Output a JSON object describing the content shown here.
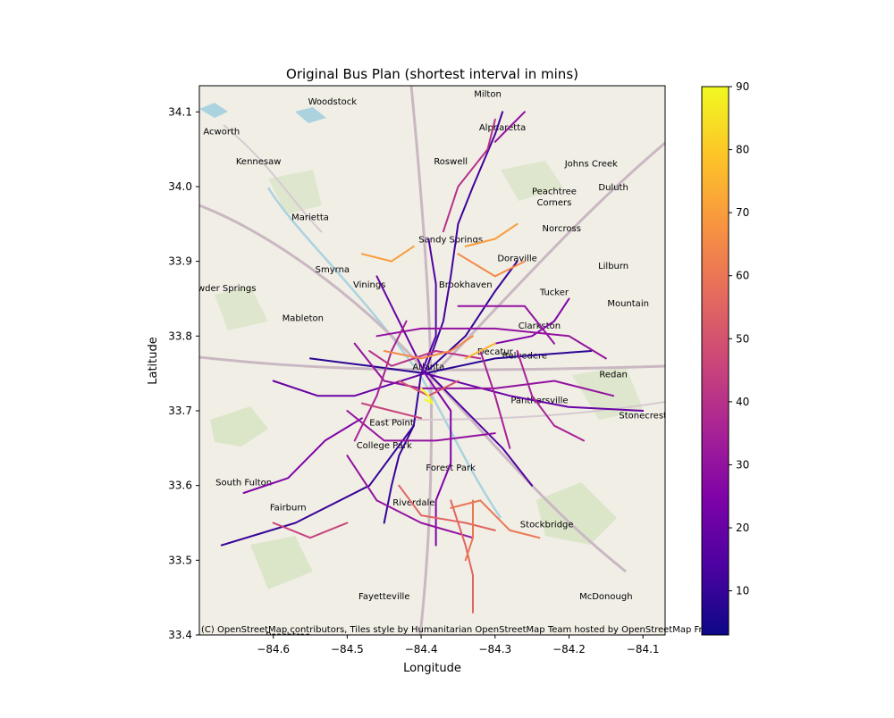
{
  "figure": {
    "title": "Original Bus Plan (shortest interval in mins)",
    "xlabel": "Longitude",
    "ylabel": "Latitude",
    "attribution": "(C) OpenStreetMap contributors, Tiles style by Humanitarian OpenStreetMap Team hosted by OpenStreetMap France"
  },
  "chart_data": {
    "type": "map",
    "title": "Original Bus Plan (shortest interval in mins)",
    "xlabel": "Longitude",
    "ylabel": "Latitude",
    "xlim": [
      -84.7,
      -84.07
    ],
    "ylim": [
      33.4,
      34.135
    ],
    "xticks": [
      -84.6,
      -84.5,
      -84.4,
      -84.3,
      -84.2,
      -84.1
    ],
    "yticks": [
      33.4,
      33.5,
      33.6,
      33.7,
      33.8,
      33.9,
      34.0,
      34.1
    ],
    "colorbar": {
      "colormap": "plasma",
      "min": 3,
      "max": 90,
      "ticks": [
        10,
        20,
        30,
        40,
        50,
        60,
        70,
        80,
        90
      ]
    },
    "basemap_places": [
      {
        "name": "Milton",
        "lon": -84.31,
        "lat": 34.12
      },
      {
        "name": "Woodstock",
        "lon": -84.52,
        "lat": 34.11
      },
      {
        "name": "Acworth",
        "lon": -84.67,
        "lat": 34.07
      },
      {
        "name": "Alpharetta",
        "lon": -84.29,
        "lat": 34.075
      },
      {
        "name": "Kennesaw",
        "lon": -84.62,
        "lat": 34.03
      },
      {
        "name": "Roswell",
        "lon": -84.36,
        "lat": 34.03
      },
      {
        "name": "Johns Creek",
        "lon": -84.17,
        "lat": 34.027
      },
      {
        "name": "Peachtree",
        "lon": -84.22,
        "lat": 33.99
      },
      {
        "name": "Corners",
        "lon": -84.22,
        "lat": 33.975
      },
      {
        "name": "Duluth",
        "lon": -84.14,
        "lat": 33.995
      },
      {
        "name": "Marietta",
        "lon": -84.55,
        "lat": 33.955
      },
      {
        "name": "Norcross",
        "lon": -84.21,
        "lat": 33.94
      },
      {
        "name": "Sandy Springs",
        "lon": -84.36,
        "lat": 33.925
      },
      {
        "name": "Smyrna",
        "lon": -84.52,
        "lat": 33.885
      },
      {
        "name": "Lilburn",
        "lon": -84.14,
        "lat": 33.89
      },
      {
        "name": "Doraville",
        "lon": -84.27,
        "lat": 33.9
      },
      {
        "name": "Powder Springs",
        "lon": -84.67,
        "lat": 33.86
      },
      {
        "name": "Vinings",
        "lon": -84.47,
        "lat": 33.865
      },
      {
        "name": "Brookhaven",
        "lon": -84.34,
        "lat": 33.865
      },
      {
        "name": "Tucker",
        "lon": -84.22,
        "lat": 33.855
      },
      {
        "name": "Mountain",
        "lon": -84.12,
        "lat": 33.84
      },
      {
        "name": "Mableton",
        "lon": -84.56,
        "lat": 33.82
      },
      {
        "name": "Clarkston",
        "lon": -84.24,
        "lat": 33.81
      },
      {
        "name": "Decatur",
        "lon": -84.3,
        "lat": 33.775
      },
      {
        "name": "Belvedere",
        "lon": -84.26,
        "lat": 33.77
      },
      {
        "name": "Redan",
        "lon": -84.14,
        "lat": 33.745
      },
      {
        "name": "Atlanta",
        "lon": -84.39,
        "lat": 33.755
      },
      {
        "name": "Panthersville",
        "lon": -84.24,
        "lat": 33.71
      },
      {
        "name": "Stonecrest",
        "lon": -84.1,
        "lat": 33.69
      },
      {
        "name": "East Point",
        "lon": -84.44,
        "lat": 33.68
      },
      {
        "name": "College Park",
        "lon": -84.45,
        "lat": 33.65
      },
      {
        "name": "Forest Park",
        "lon": -84.36,
        "lat": 33.62
      },
      {
        "name": "South Fulton",
        "lon": -84.64,
        "lat": 33.6
      },
      {
        "name": "Fairburn",
        "lon": -84.58,
        "lat": 33.567
      },
      {
        "name": "Riverdale",
        "lon": -84.41,
        "lat": 33.573
      },
      {
        "name": "Stockbridge",
        "lon": -84.23,
        "lat": 33.544
      },
      {
        "name": "Fayetteville",
        "lon": -84.45,
        "lat": 33.448
      },
      {
        "name": "McDonough",
        "lon": -84.15,
        "lat": 33.448
      },
      {
        "name": "Peachtree",
        "lon": -84.58,
        "lat": 33.395
      }
    ],
    "routes": [
      {
        "interval": 12,
        "points": [
          [
            -84.395,
            33.75
          ],
          [
            -84.37,
            33.82
          ],
          [
            -84.36,
            33.88
          ],
          [
            -84.35,
            33.95
          ],
          [
            -84.33,
            34.0
          ],
          [
            -84.3,
            34.07
          ],
          [
            -84.29,
            34.1
          ]
        ]
      },
      {
        "interval": 10,
        "points": [
          [
            -84.39,
            33.755
          ],
          [
            -84.34,
            33.8
          ],
          [
            -84.3,
            33.86
          ],
          [
            -84.27,
            33.9
          ]
        ]
      },
      {
        "interval": 8,
        "points": [
          [
            -84.395,
            33.75
          ],
          [
            -84.3,
            33.77
          ],
          [
            -84.24,
            33.775
          ],
          [
            -84.17,
            33.78
          ]
        ]
      },
      {
        "interval": 8,
        "points": [
          [
            -84.395,
            33.75
          ],
          [
            -84.47,
            33.76
          ],
          [
            -84.55,
            33.77
          ]
        ]
      },
      {
        "interval": 10,
        "points": [
          [
            -84.4,
            33.75
          ],
          [
            -84.41,
            33.68
          ],
          [
            -84.43,
            33.64
          ],
          [
            -84.44,
            33.6
          ],
          [
            -84.45,
            33.55
          ]
        ]
      },
      {
        "interval": 10,
        "points": [
          [
            -84.41,
            33.68
          ],
          [
            -84.47,
            33.6
          ],
          [
            -84.57,
            33.55
          ],
          [
            -84.67,
            33.52
          ]
        ]
      },
      {
        "interval": 15,
        "points": [
          [
            -84.4,
            33.75
          ],
          [
            -84.38,
            33.8
          ],
          [
            -84.38,
            33.87
          ],
          [
            -84.39,
            33.93
          ]
        ]
      },
      {
        "interval": 15,
        "points": [
          [
            -84.39,
            33.75
          ],
          [
            -84.33,
            33.69
          ],
          [
            -84.29,
            33.65
          ],
          [
            -84.25,
            33.6
          ]
        ]
      },
      {
        "interval": 20,
        "points": [
          [
            -84.395,
            33.75
          ],
          [
            -84.28,
            33.72
          ],
          [
            -84.2,
            33.705
          ],
          [
            -84.1,
            33.7
          ]
        ]
      },
      {
        "interval": 20,
        "points": [
          [
            -84.395,
            33.75
          ],
          [
            -84.49,
            33.72
          ],
          [
            -84.54,
            33.72
          ],
          [
            -84.6,
            33.74
          ]
        ]
      },
      {
        "interval": 20,
        "points": [
          [
            -84.395,
            33.75
          ],
          [
            -84.44,
            33.84
          ],
          [
            -84.46,
            33.88
          ]
        ]
      },
      {
        "interval": 25,
        "points": [
          [
            -84.395,
            33.75
          ],
          [
            -84.36,
            33.7
          ],
          [
            -84.36,
            33.63
          ],
          [
            -84.38,
            33.58
          ],
          [
            -84.38,
            33.52
          ]
        ]
      },
      {
        "interval": 25,
        "points": [
          [
            -84.48,
            33.69
          ],
          [
            -84.53,
            33.66
          ],
          [
            -84.58,
            33.61
          ],
          [
            -84.64,
            33.59
          ]
        ]
      },
      {
        "interval": 25,
        "points": [
          [
            -84.3,
            33.79
          ],
          [
            -84.25,
            33.8
          ],
          [
            -84.22,
            33.82
          ],
          [
            -84.2,
            33.85
          ]
        ]
      },
      {
        "interval": 30,
        "points": [
          [
            -84.46,
            33.8
          ],
          [
            -84.4,
            33.81
          ],
          [
            -84.3,
            33.81
          ],
          [
            -84.2,
            33.8
          ],
          [
            -84.15,
            33.77
          ]
        ]
      },
      {
        "interval": 30,
        "points": [
          [
            -84.49,
            33.79
          ],
          [
            -84.45,
            33.74
          ],
          [
            -84.4,
            33.73
          ],
          [
            -84.3,
            33.73
          ],
          [
            -84.22,
            33.74
          ],
          [
            -84.14,
            33.72
          ]
        ]
      },
      {
        "interval": 30,
        "points": [
          [
            -84.5,
            33.7
          ],
          [
            -84.45,
            33.66
          ],
          [
            -84.38,
            33.66
          ],
          [
            -84.3,
            33.67
          ]
        ]
      },
      {
        "interval": 30,
        "points": [
          [
            -84.5,
            33.64
          ],
          [
            -84.46,
            33.58
          ],
          [
            -84.4,
            33.55
          ],
          [
            -84.33,
            33.53
          ]
        ]
      },
      {
        "interval": 30,
        "points": [
          [
            -84.35,
            33.84
          ],
          [
            -84.3,
            33.84
          ],
          [
            -84.26,
            33.84
          ],
          [
            -84.22,
            33.79
          ]
        ]
      },
      {
        "interval": 30,
        "points": [
          [
            -84.3,
            34.06
          ],
          [
            -84.28,
            34.08
          ],
          [
            -84.26,
            34.1
          ]
        ]
      },
      {
        "interval": 35,
        "points": [
          [
            -84.27,
            33.78
          ],
          [
            -84.25,
            33.72
          ],
          [
            -84.22,
            33.68
          ],
          [
            -84.18,
            33.66
          ]
        ]
      },
      {
        "interval": 35,
        "points": [
          [
            -84.42,
            33.82
          ],
          [
            -84.44,
            33.78
          ],
          [
            -84.46,
            33.72
          ],
          [
            -84.49,
            33.66
          ]
        ]
      },
      {
        "interval": 35,
        "points": [
          [
            -84.32,
            33.78
          ],
          [
            -84.3,
            33.72
          ],
          [
            -84.28,
            33.65
          ]
        ]
      },
      {
        "interval": 40,
        "points": [
          [
            -84.37,
            33.94
          ],
          [
            -84.35,
            34.0
          ],
          [
            -84.31,
            34.05
          ],
          [
            -84.3,
            34.09
          ]
        ]
      },
      {
        "interval": 40,
        "points": [
          [
            -84.47,
            33.78
          ],
          [
            -84.44,
            33.76
          ],
          [
            -84.38,
            33.78
          ],
          [
            -84.32,
            33.77
          ]
        ]
      },
      {
        "interval": 45,
        "points": [
          [
            -84.48,
            33.71
          ],
          [
            -84.44,
            33.7
          ],
          [
            -84.4,
            33.69
          ]
        ]
      },
      {
        "interval": 45,
        "points": [
          [
            -84.6,
            33.55
          ],
          [
            -84.55,
            33.53
          ],
          [
            -84.5,
            33.55
          ]
        ]
      },
      {
        "interval": 50,
        "points": [
          [
            -84.43,
            33.74
          ],
          [
            -84.39,
            33.72
          ],
          [
            -84.35,
            33.74
          ]
        ]
      },
      {
        "interval": 55,
        "points": [
          [
            -84.36,
            33.58
          ],
          [
            -84.34,
            33.52
          ],
          [
            -84.33,
            33.48
          ],
          [
            -84.33,
            33.43
          ]
        ]
      },
      {
        "interval": 55,
        "points": [
          [
            -84.43,
            33.6
          ],
          [
            -84.4,
            33.56
          ],
          [
            -84.34,
            33.55
          ],
          [
            -84.3,
            33.54
          ]
        ]
      },
      {
        "interval": 60,
        "points": [
          [
            -84.36,
            33.57
          ],
          [
            -84.32,
            33.58
          ],
          [
            -84.28,
            33.54
          ],
          [
            -84.24,
            33.53
          ]
        ]
      },
      {
        "interval": 60,
        "points": [
          [
            -84.33,
            33.58
          ],
          [
            -84.33,
            33.53
          ],
          [
            -84.34,
            33.5
          ]
        ]
      },
      {
        "interval": 65,
        "points": [
          [
            -84.35,
            33.91
          ],
          [
            -84.3,
            33.88
          ],
          [
            -84.26,
            33.9
          ]
        ]
      },
      {
        "interval": 65,
        "points": [
          [
            -84.45,
            33.78
          ],
          [
            -84.4,
            33.77
          ],
          [
            -84.36,
            33.78
          ],
          [
            -84.33,
            33.8
          ]
        ]
      },
      {
        "interval": 70,
        "points": [
          [
            -84.34,
            33.92
          ],
          [
            -84.3,
            33.93
          ],
          [
            -84.27,
            33.95
          ]
        ]
      },
      {
        "interval": 70,
        "points": [
          [
            -84.48,
            33.91
          ],
          [
            -84.44,
            33.9
          ],
          [
            -84.41,
            33.92
          ]
        ]
      },
      {
        "interval": 75,
        "points": [
          [
            -84.34,
            33.77
          ],
          [
            -84.32,
            33.78
          ],
          [
            -84.3,
            33.79
          ]
        ]
      },
      {
        "interval": 90,
        "points": [
          [
            -84.4,
            33.73
          ],
          [
            -84.39,
            33.72
          ],
          [
            -84.385,
            33.71
          ],
          [
            -84.395,
            33.715
          ]
        ]
      }
    ]
  }
}
